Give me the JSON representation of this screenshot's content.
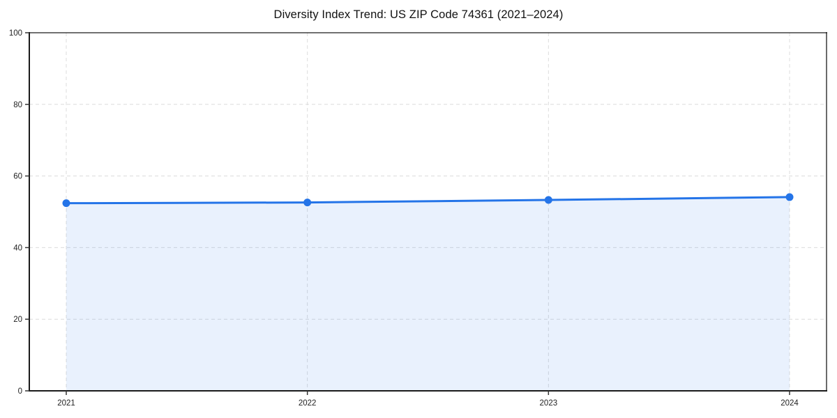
{
  "chart_data": {
    "type": "area",
    "title": "Diversity Index Trend: US ZIP Code 74361 (2021–2024)",
    "categories": [
      "2021",
      "2022",
      "2023",
      "2024"
    ],
    "series": [
      {
        "name": "Diversity Index",
        "values": [
          52.4,
          52.6,
          53.3,
          54.1
        ]
      }
    ],
    "xlabel": "",
    "ylabel": "",
    "ylim": [
      0,
      100
    ],
    "y_ticks": [
      0,
      20,
      40,
      60,
      80,
      100
    ],
    "grid": true,
    "grid_style": "dashed",
    "legend": false,
    "colors": {
      "line": "#2474e8",
      "marker": "#2474e8",
      "fill": "rgba(36,116,232,0.10)",
      "grid": "#dcdcdc",
      "spine": "#1a1a1a",
      "tick": "#333333",
      "background": "#ffffff"
    }
  }
}
